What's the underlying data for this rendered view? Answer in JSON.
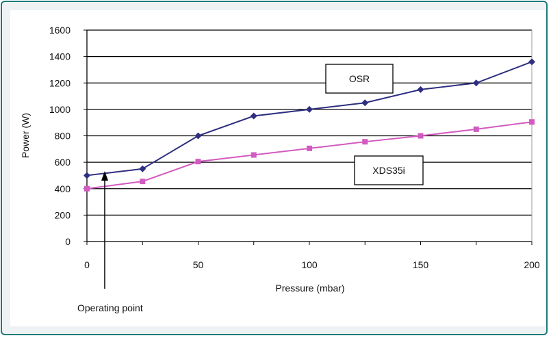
{
  "chart_data": {
    "type": "line",
    "x": [
      0,
      25,
      50,
      75,
      100,
      125,
      150,
      175,
      200
    ],
    "xlim": [
      0,
      200
    ],
    "ylim": [
      0,
      1600
    ],
    "xticks": [
      "0",
      "50",
      "100",
      "150",
      "200"
    ],
    "yticks": [
      "0",
      "200",
      "400",
      "600",
      "800",
      "1000",
      "1200",
      "1400",
      "1600"
    ],
    "xlabel": "Pressure (mbar)",
    "ylabel": "Power (W)",
    "grid": "horizontal",
    "series": [
      {
        "name": "OSR",
        "color": "#2e2f80",
        "marker": "diamond",
        "values": [
          500,
          550,
          800,
          950,
          1000,
          1050,
          1150,
          1200,
          1360
        ]
      },
      {
        "name": "XDS35i",
        "color": "#d25ac0",
        "marker": "square",
        "values": [
          400,
          455,
          605,
          655,
          705,
          755,
          800,
          850,
          905
        ]
      }
    ],
    "annotations": [
      {
        "text": "Operating point",
        "points_to_x": 8,
        "points_to_y": 500
      }
    ]
  }
}
